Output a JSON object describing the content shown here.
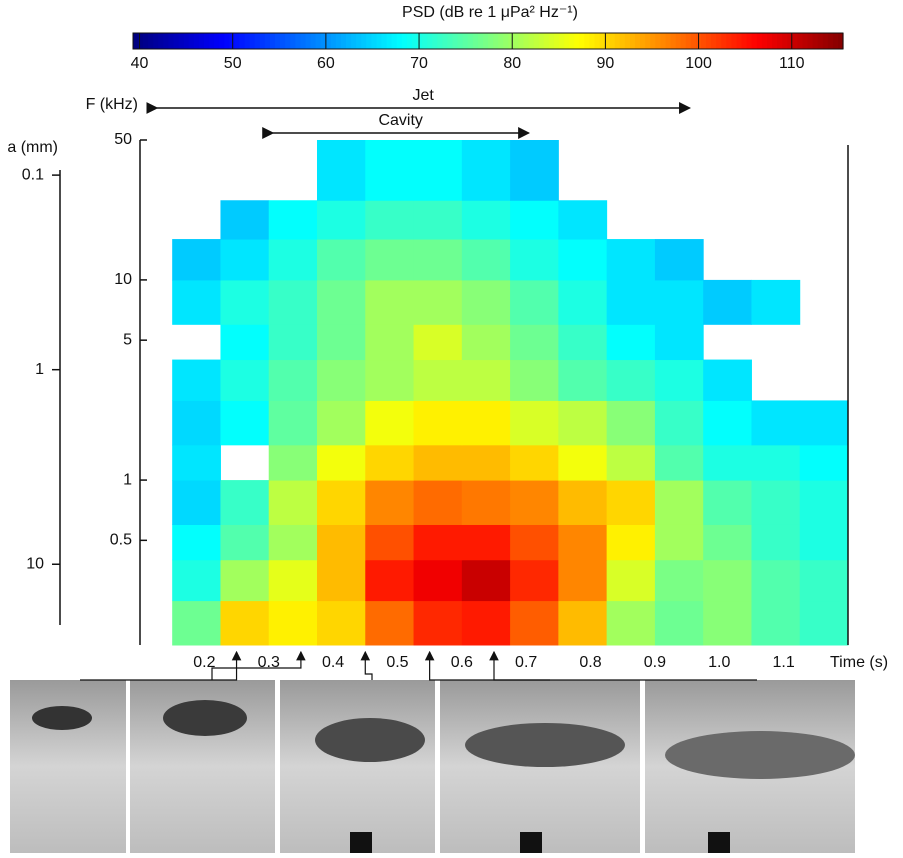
{
  "chart_data": {
    "type": "heatmap",
    "colorbar_title": "PSD (dB re 1 μPa² Hz⁻¹)",
    "colormap": "jet",
    "zlim": [
      39.3,
      115.5
    ],
    "zticks": [
      40,
      50,
      60,
      70,
      80,
      90,
      100,
      110
    ],
    "x_label": "Time (s)",
    "y_label": "F (kHz)",
    "y2_label": "a (mm)",
    "x": [
      0.15,
      0.225,
      0.3,
      0.375,
      0.45,
      0.525,
      0.6,
      0.675,
      0.75,
      0.825,
      0.9,
      0.975,
      1.05,
      1.125,
      1.2
    ],
    "y": [
      0.15,
      0.25,
      0.4,
      0.6,
      1,
      1.5,
      2.5,
      4,
      6,
      10,
      16,
      25,
      50
    ],
    "values": [
      [
        76,
        90,
        88,
        90,
        98,
        103,
        104,
        99,
        92,
        80,
        76,
        78,
        74,
        72
      ],
      [
        70,
        80,
        85,
        92,
        104,
        107,
        110,
        103,
        96,
        84,
        77,
        78,
        74,
        72
      ],
      [
        68,
        74,
        80,
        92,
        100,
        104,
        104,
        100,
        96,
        88,
        80,
        76,
        72,
        70
      ],
      [
        65,
        72,
        82,
        90,
        96,
        98,
        97,
        96,
        92,
        90,
        80,
        74,
        72,
        70
      ],
      [
        66,
        null,
        78,
        86,
        90,
        92,
        92,
        90,
        86,
        82,
        74,
        70,
        70,
        68
      ],
      [
        65,
        68,
        75,
        80,
        86,
        88,
        88,
        84,
        82,
        78,
        72,
        68,
        66,
        66
      ],
      [
        66,
        70,
        74,
        78,
        80,
        82,
        82,
        78,
        74,
        72,
        70,
        66,
        null,
        null
      ],
      [
        null,
        68,
        72,
        76,
        80,
        84,
        80,
        76,
        72,
        68,
        66,
        null,
        null,
        null
      ],
      [
        66,
        70,
        72,
        76,
        80,
        80,
        78,
        74,
        70,
        66,
        66,
        64,
        66,
        null
      ],
      [
        64,
        66,
        70,
        74,
        76,
        76,
        74,
        70,
        68,
        66,
        64,
        null,
        null,
        null
      ],
      [
        null,
        64,
        68,
        70,
        72,
        72,
        70,
        68,
        66,
        null,
        null,
        null,
        null,
        null
      ],
      [
        null,
        null,
        null,
        66,
        68,
        68,
        66,
        64,
        null,
        null,
        null,
        null,
        null,
        null
      ]
    ],
    "xlim": [
      0.1,
      1.2
    ],
    "xticks": [
      0.2,
      0.3,
      0.4,
      0.5,
      0.6,
      0.7,
      0.8,
      0.9,
      {
        "value": 1,
        "label": "1.0"
      },
      1.1
    ],
    "ylim": [
      0.15,
      50
    ],
    "yticks": [
      0.5,
      1,
      5,
      10,
      50
    ],
    "ylog": true,
    "y2lim": [
      0.066,
      26
    ],
    "y2ticks": [
      0.1,
      1,
      10
    ],
    "y2log": true,
    "annotations": [
      {
        "text": "Jet",
        "span": [
          0.12,
          0.96
        ]
      },
      {
        "text": "Cavity",
        "span": [
          0.3,
          0.71
        ]
      }
    ],
    "photo_times": [
      0.25,
      0.35,
      0.45,
      0.55,
      0.65
    ]
  }
}
